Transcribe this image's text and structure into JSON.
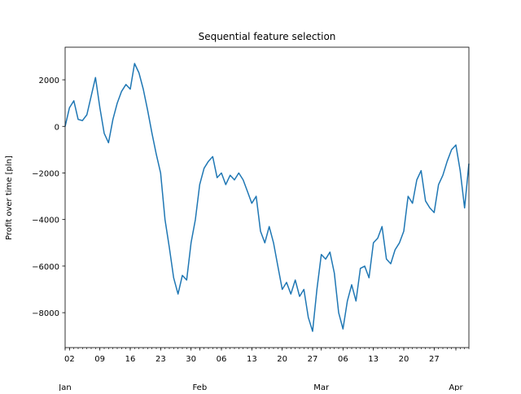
{
  "chart_data": {
    "type": "line",
    "title": "Sequential feature selection",
    "xlabel": "",
    "ylabel": "Profit over time [pln]",
    "grid": false,
    "legend": "none",
    "x_range": [
      "2023-01-01",
      "2023-04-04"
    ],
    "ylim": [
      -9500,
      3400
    ],
    "y_ticks": [
      {
        "value": 2000,
        "label": "2000"
      },
      {
        "value": 0,
        "label": "0"
      },
      {
        "value": -2000,
        "label": "−2000"
      },
      {
        "value": -4000,
        "label": "−4000"
      },
      {
        "value": -6000,
        "label": "−6000"
      },
      {
        "value": -8000,
        "label": "−8000"
      }
    ],
    "x_minor_ticks": [
      {
        "date": "2023-01-02",
        "label": "02"
      },
      {
        "date": "2023-01-09",
        "label": "09"
      },
      {
        "date": "2023-01-16",
        "label": "16"
      },
      {
        "date": "2023-01-23",
        "label": "23"
      },
      {
        "date": "2023-01-30",
        "label": "30"
      },
      {
        "date": "2023-02-06",
        "label": "06"
      },
      {
        "date": "2023-02-13",
        "label": "13"
      },
      {
        "date": "2023-02-20",
        "label": "20"
      },
      {
        "date": "2023-02-27",
        "label": "27"
      },
      {
        "date": "2023-03-06",
        "label": "06"
      },
      {
        "date": "2023-03-13",
        "label": "13"
      },
      {
        "date": "2023-03-20",
        "label": "20"
      },
      {
        "date": "2023-03-27",
        "label": "27"
      }
    ],
    "x_major_ticks": [
      {
        "date": "2023-01-01",
        "label": "Jan"
      },
      {
        "date": "2023-02-01",
        "label": "Feb"
      },
      {
        "date": "2023-03-01",
        "label": "Mar"
      },
      {
        "date": "2023-04-01",
        "label": "Apr"
      }
    ],
    "line_color": "#1f77b4",
    "series": [
      {
        "x": [
          "2023-01-01",
          "2023-01-02",
          "2023-01-03",
          "2023-01-04",
          "2023-01-05",
          "2023-01-06",
          "2023-01-07",
          "2023-01-08",
          "2023-01-09",
          "2023-01-10",
          "2023-01-11",
          "2023-01-12",
          "2023-01-13",
          "2023-01-14",
          "2023-01-15",
          "2023-01-16",
          "2023-01-17",
          "2023-01-18",
          "2023-01-19",
          "2023-01-20",
          "2023-01-21",
          "2023-01-22",
          "2023-01-23",
          "2023-01-24",
          "2023-01-25",
          "2023-01-26",
          "2023-01-27",
          "2023-01-28",
          "2023-01-29",
          "2023-01-30",
          "2023-01-31",
          "2023-02-01",
          "2023-02-02",
          "2023-02-03",
          "2023-02-04",
          "2023-02-05",
          "2023-02-06",
          "2023-02-07",
          "2023-02-08",
          "2023-02-09",
          "2023-02-10",
          "2023-02-11",
          "2023-02-12",
          "2023-02-13",
          "2023-02-14",
          "2023-02-15",
          "2023-02-16",
          "2023-02-17",
          "2023-02-18",
          "2023-02-19",
          "2023-02-20",
          "2023-02-21",
          "2023-02-22",
          "2023-02-23",
          "2023-02-24",
          "2023-02-25",
          "2023-02-26",
          "2023-02-27",
          "2023-02-28",
          "2023-03-01",
          "2023-03-02",
          "2023-03-03",
          "2023-03-04",
          "2023-03-05",
          "2023-03-06",
          "2023-03-07",
          "2023-03-08",
          "2023-03-09",
          "2023-03-10",
          "2023-03-11",
          "2023-03-12",
          "2023-03-13",
          "2023-03-14",
          "2023-03-15",
          "2023-03-16",
          "2023-03-17",
          "2023-03-18",
          "2023-03-19",
          "2023-03-20",
          "2023-03-21",
          "2023-03-22",
          "2023-03-23",
          "2023-03-24",
          "2023-03-25",
          "2023-03-26",
          "2023-03-27",
          "2023-03-28",
          "2023-03-29",
          "2023-03-30",
          "2023-03-31",
          "2023-04-01",
          "2023-04-02",
          "2023-04-03",
          "2023-04-04"
        ],
        "y": [
          0,
          800,
          1100,
          300,
          250,
          500,
          1300,
          2100,
          800,
          -300,
          -700,
          300,
          1000,
          1500,
          1800,
          1600,
          2700,
          2300,
          1600,
          700,
          -300,
          -1200,
          -2000,
          -4000,
          -5200,
          -6500,
          -7200,
          -6400,
          -6600,
          -5000,
          -4000,
          -2500,
          -1800,
          -1500,
          -1300,
          -2200,
          -2000,
          -2500,
          -2100,
          -2300,
          -2000,
          -2300,
          -2800,
          -3300,
          -3000,
          -4500,
          -5000,
          -4300,
          -5000,
          -6000,
          -7000,
          -6700,
          -7200,
          -6600,
          -7300,
          -7000,
          -8200,
          -8800,
          -7000,
          -5500,
          -5700,
          -5400,
          -6300,
          -8000,
          -8700,
          -7500,
          -6800,
          -7500,
          -6100,
          -6000,
          -6500,
          -5000,
          -4800,
          -4300,
          -5700,
          -5900,
          -5300,
          -5000,
          -4500,
          -3000,
          -3300,
          -2300,
          -1900,
          -3200,
          -3500,
          -3700,
          -2500,
          -2100,
          -1500,
          -1000,
          -800,
          -1900,
          -3500,
          -1600
        ]
      }
    ]
  }
}
